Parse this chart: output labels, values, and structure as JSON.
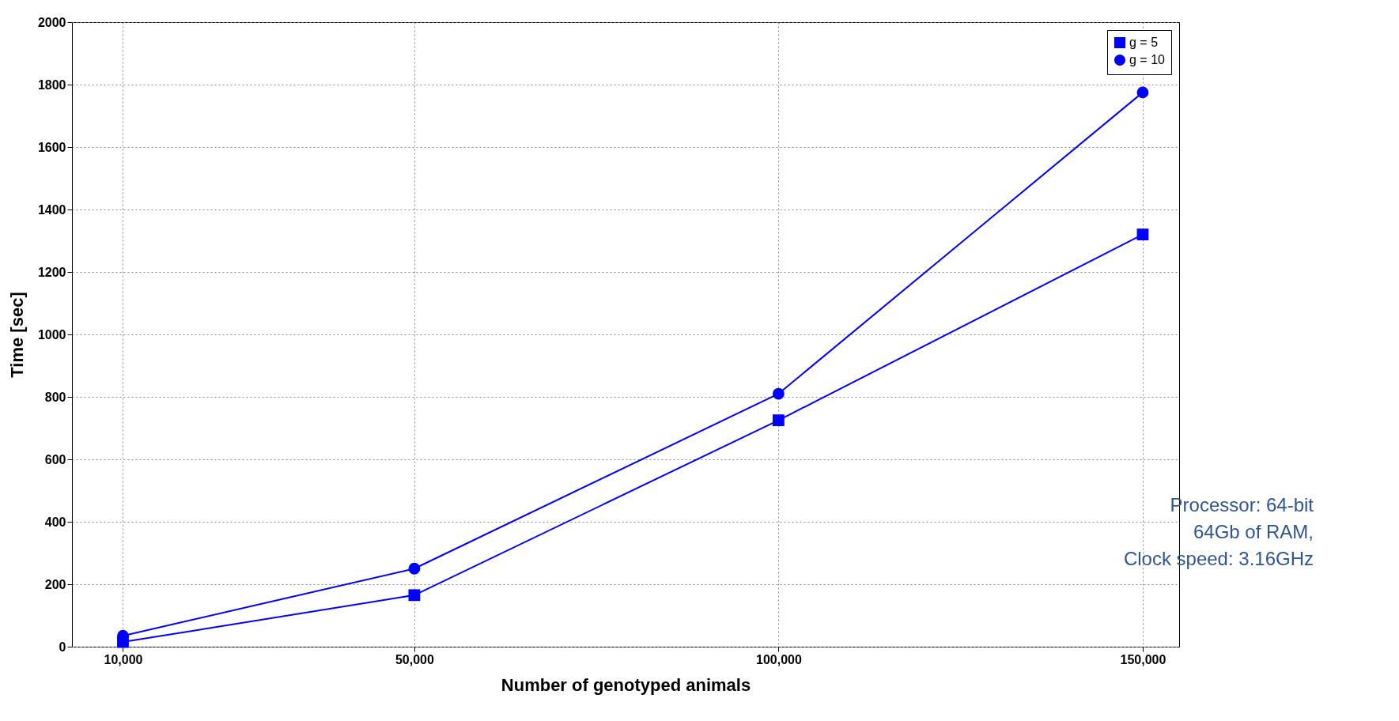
{
  "chart_data": {
    "type": "line",
    "xlabel": "Number of genotyped animals",
    "ylabel": "Time [sec]",
    "x": [
      10000,
      50000,
      100000,
      150000
    ],
    "xlim": [
      3000,
      155000
    ],
    "xticks": [
      {
        "value": 10000,
        "label": "10,000"
      },
      {
        "value": 50000,
        "label": "50,000"
      },
      {
        "value": 100000,
        "label": "100,000"
      },
      {
        "value": 150000,
        "label": "150,000"
      }
    ],
    "ylim": [
      0,
      2000
    ],
    "yticks": [
      0,
      200,
      400,
      600,
      800,
      1000,
      1200,
      1400,
      1600,
      1800,
      2000
    ],
    "grid": true,
    "legend": "top right",
    "line_style": "solid",
    "series": [
      {
        "name": "g = 5",
        "color": "#0000ff",
        "marker": "square",
        "values": [
          15,
          165,
          725,
          1320
        ]
      },
      {
        "name": "g = 10",
        "color": "#0000ff",
        "marker": "circle",
        "values": [
          35,
          250,
          810,
          1775
        ]
      }
    ],
    "annotations": [
      "Processor: 64-bit",
      "64Gb of RAM,",
      "Clock speed: 3.16GHz"
    ]
  }
}
